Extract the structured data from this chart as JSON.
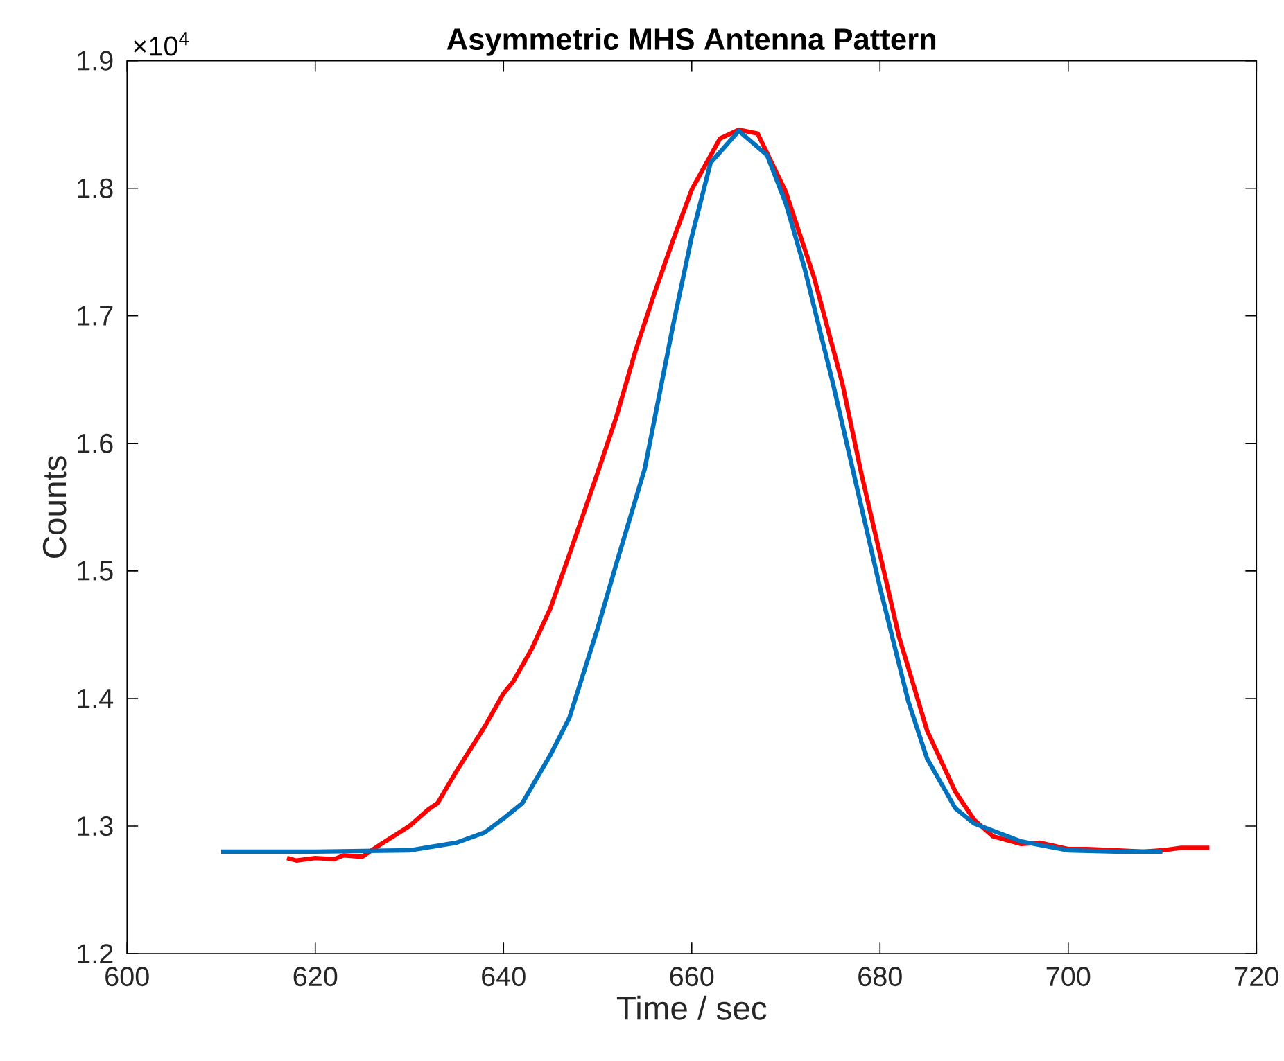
{
  "chart_data": {
    "type": "line",
    "title": "Asymmetric MHS Antenna Pattern",
    "xlabel": "Time / sec",
    "ylabel": "Counts",
    "annotations": [
      "×10$^{4}$"
    ],
    "xlim": [
      600,
      720
    ],
    "xticks": [
      600,
      620,
      640,
      660,
      680,
      700,
      720
    ],
    "ylim": [
      1.2,
      1.9
    ],
    "yticks": [
      1.2,
      1.3,
      1.4,
      1.5,
      1.6,
      1.7,
      1.8,
      1.9
    ],
    "grid": false,
    "marker": "none",
    "line_style": "solid",
    "series": [
      {
        "color": "#ff0000",
        "x": [
          617,
          618,
          620,
          622,
          623,
          625,
          627,
          630,
          632,
          633,
          635,
          638,
          640,
          641,
          643,
          645,
          647,
          650,
          652,
          654,
          656,
          658,
          660,
          663,
          665,
          667,
          670,
          673,
          676,
          678,
          680,
          682,
          685,
          688,
          690,
          692,
          695,
          697,
          700,
          702,
          705,
          708,
          710,
          712,
          715
        ],
        "values": [
          1.275,
          1.273,
          1.275,
          1.274,
          1.277,
          1.276,
          1.286,
          1.3,
          1.313,
          1.318,
          1.343,
          1.378,
          1.404,
          1.413,
          1.439,
          1.471,
          1.513,
          1.577,
          1.621,
          1.672,
          1.717,
          1.759,
          1.799,
          1.839,
          1.846,
          1.843,
          1.797,
          1.73,
          1.647,
          1.577,
          1.513,
          1.449,
          1.375,
          1.327,
          1.305,
          1.292,
          1.286,
          1.287,
          1.282,
          1.282,
          1.281,
          1.28,
          1.281,
          1.283,
          1.283
        ]
      },
      {
        "color": "#0072bd",
        "x": [
          610,
          620,
          630,
          635,
          638,
          640,
          642,
          645,
          647,
          650,
          652,
          655,
          658,
          660,
          662,
          665,
          668,
          670,
          672,
          675,
          678,
          680,
          683,
          685,
          688,
          690,
          695,
          700,
          705,
          710
        ],
        "values": [
          1.28,
          1.28,
          1.281,
          1.287,
          1.295,
          1.306,
          1.318,
          1.356,
          1.385,
          1.455,
          1.506,
          1.58,
          1.692,
          1.762,
          1.82,
          1.845,
          1.826,
          1.788,
          1.737,
          1.647,
          1.551,
          1.487,
          1.398,
          1.353,
          1.314,
          1.302,
          1.288,
          1.281,
          1.28,
          1.28
        ]
      }
    ]
  }
}
